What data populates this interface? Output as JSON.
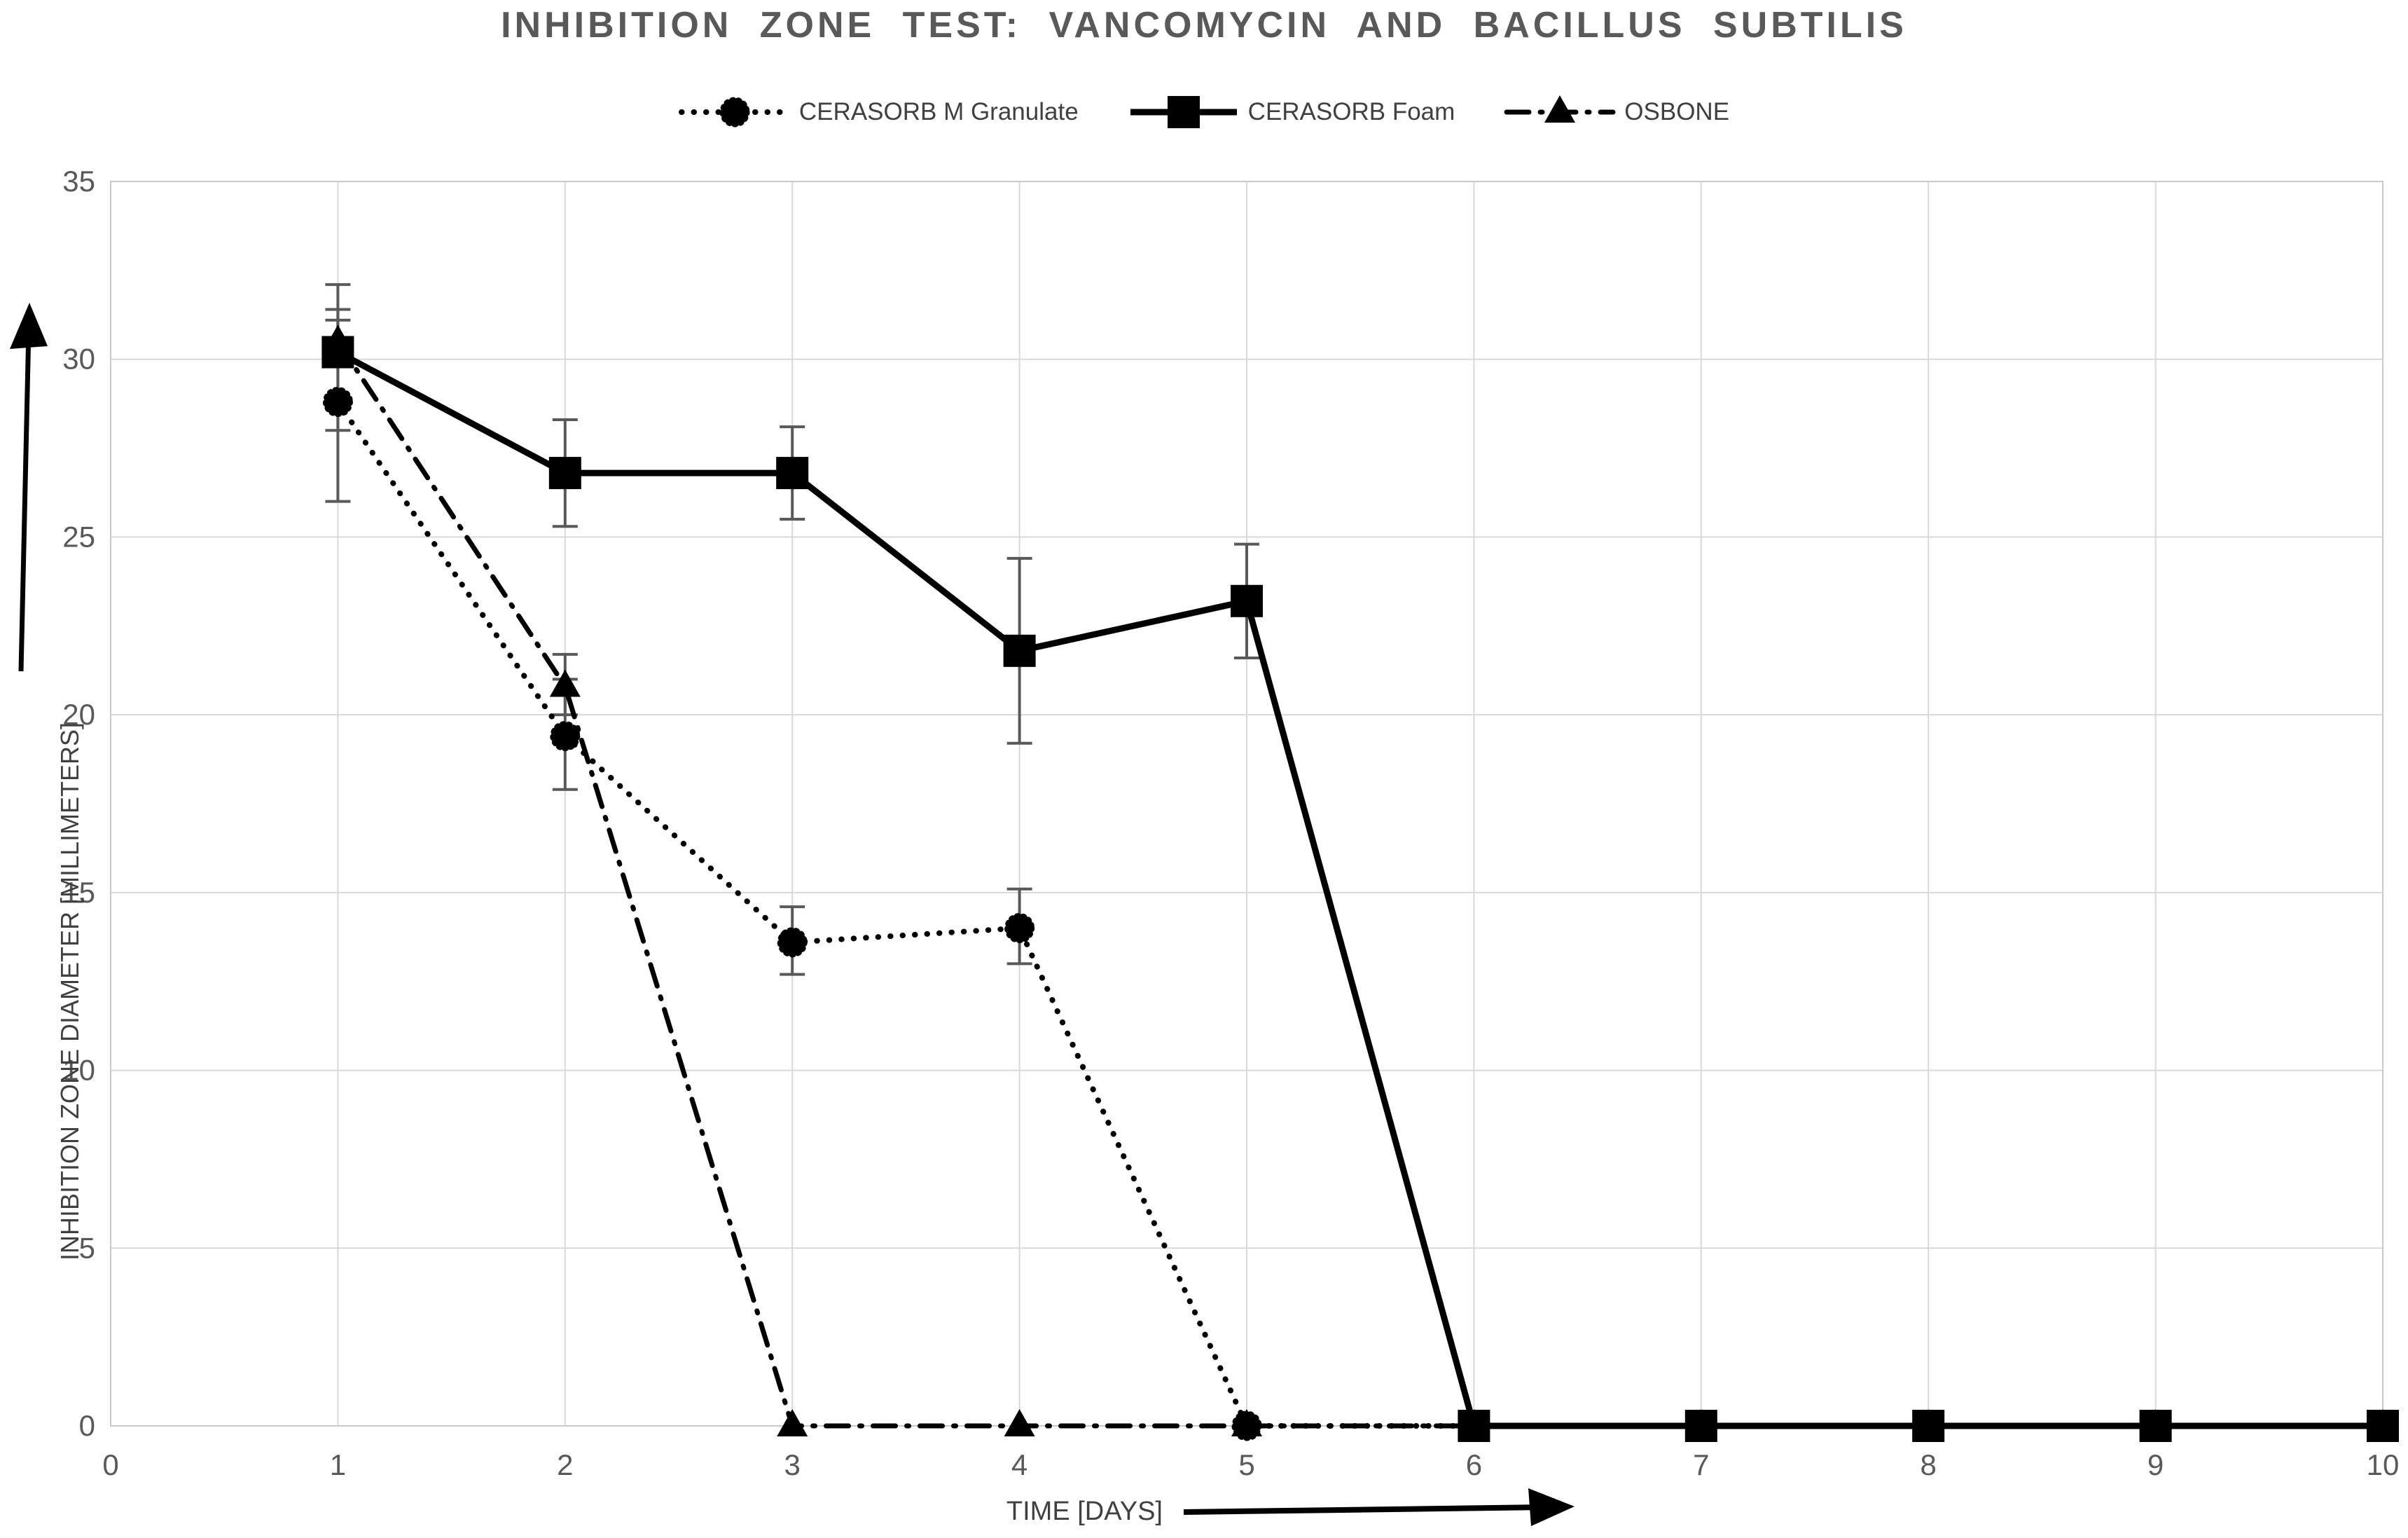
{
  "title": "INHIBITION ZONE TEST: VANCOMYCIN AND BACILLUS SUBTILIS",
  "colors": {
    "series": "#000000",
    "grid": "#d9d9d9",
    "plot_border": "#c9c9c9",
    "tick_label": "#595959",
    "title": "#595959",
    "axis_title": "#404040",
    "error_bar": "#595959"
  },
  "icons": {
    "y_axis_arrow": "up-arrow-icon",
    "x_axis_arrow": "right-arrow-icon"
  },
  "chart_data": {
    "type": "line",
    "title": "INHIBITION ZONE TEST: VANCOMYCIN AND BACILLUS SUBTILIS",
    "xlabel": "TIME [DAYS]",
    "ylabel": "INHIBITION ZONE DIAMETER [MILLIMETERS]",
    "xlim": [
      0,
      10
    ],
    "ylim": [
      0,
      35
    ],
    "x_ticks": [
      0,
      1,
      2,
      3,
      4,
      5,
      6,
      7,
      8,
      9,
      10
    ],
    "y_ticks": [
      0,
      5,
      10,
      15,
      20,
      25,
      30,
      35
    ],
    "grid": true,
    "legend_position": "top",
    "z_order": [
      2,
      0,
      1
    ],
    "series": [
      {
        "name": "CERASORB M Granulate",
        "line_style": "dotted",
        "marker": "dotted-circle",
        "days": [
          1,
          2,
          3,
          4,
          5,
          6,
          7,
          8,
          9,
          10
        ],
        "values": [
          28.8,
          19.4,
          13.6,
          14,
          0,
          0,
          0,
          0,
          0,
          0
        ],
        "error_bars": [
          {
            "day": 1,
            "plus": 2.3,
            "minus": 2.8
          },
          {
            "day": 2,
            "plus": 1.6,
            "minus": 1.5
          },
          {
            "day": 3,
            "plus": 1.0,
            "minus": 0.9
          },
          {
            "day": 4,
            "plus": 1.1,
            "minus": 1.0
          }
        ]
      },
      {
        "name": "CERASORB Foam",
        "line_style": "solid",
        "marker": "square",
        "days": [
          1,
          2,
          3,
          4,
          5,
          6,
          7,
          8,
          9,
          10
        ],
        "values": [
          30.2,
          26.8,
          26.8,
          21.8,
          23.2,
          0,
          0,
          0,
          0,
          0
        ],
        "error_bars": [
          {
            "day": 1,
            "plus": 1.2,
            "minus": 2.2
          },
          {
            "day": 2,
            "plus": 1.5,
            "minus": 1.5
          },
          {
            "day": 3,
            "plus": 1.3,
            "minus": 1.3
          },
          {
            "day": 4,
            "plus": 2.6,
            "minus": 2.6
          },
          {
            "day": 5,
            "plus": 1.6,
            "minus": 1.6
          }
        ]
      },
      {
        "name": "OSBONE",
        "line_style": "dashdot",
        "marker": "triangle",
        "days": [
          1,
          2,
          3,
          4,
          5,
          6,
          7,
          8,
          9,
          10
        ],
        "values": [
          30.5,
          20.8,
          0,
          0,
          0,
          0,
          0,
          0,
          0,
          0
        ],
        "error_bars": [
          {
            "day": 1,
            "plus": 1.6,
            "minus": 0.6
          },
          {
            "day": 2,
            "plus": 0.9,
            "minus": 0.8
          }
        ]
      }
    ]
  }
}
